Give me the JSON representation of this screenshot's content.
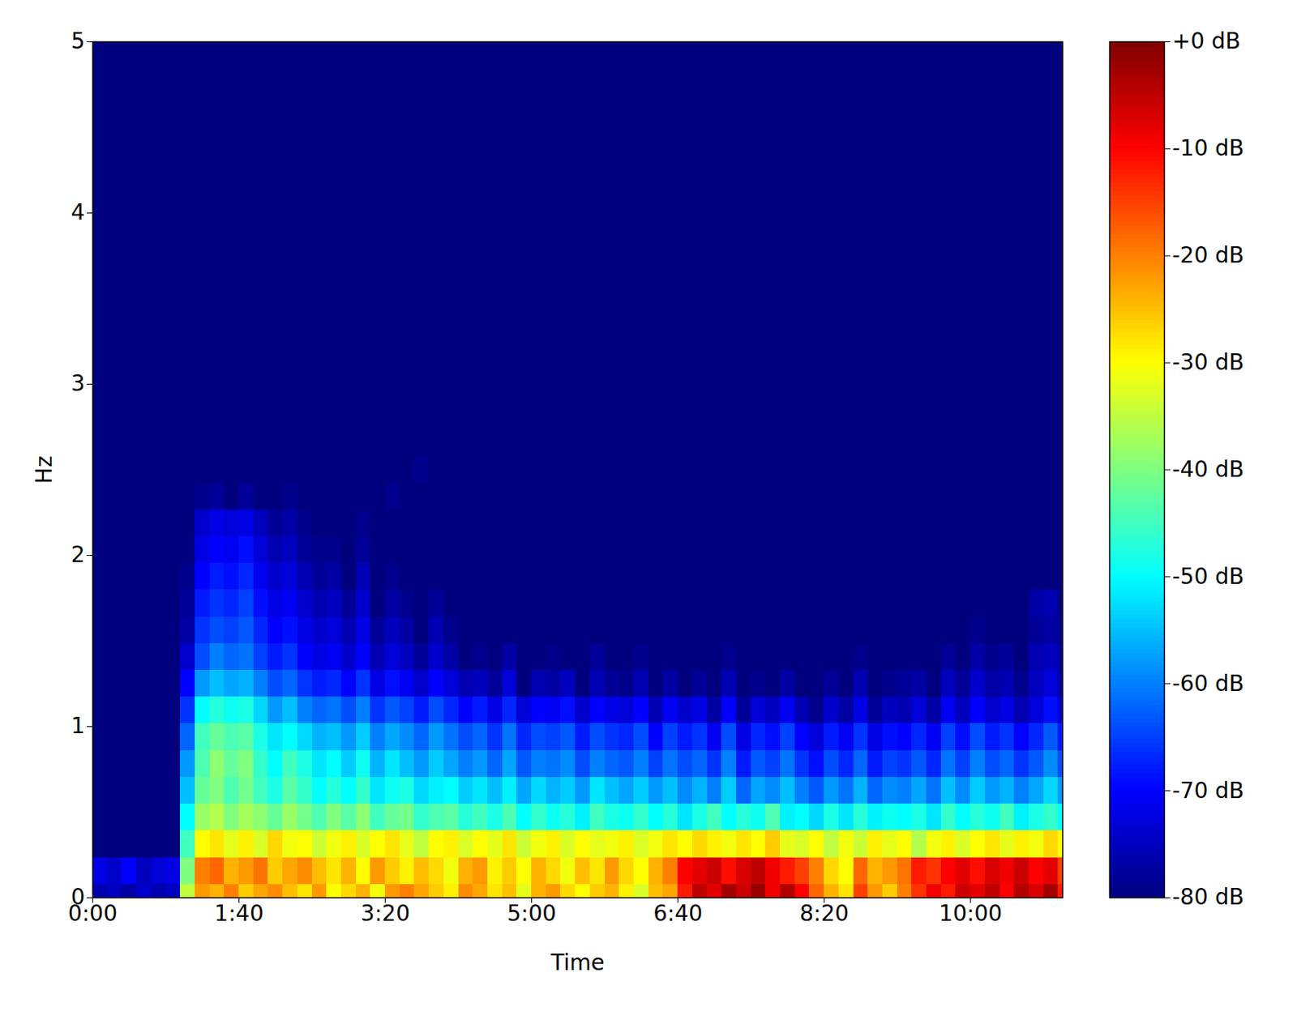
{
  "chart_data": {
    "type": "heatmap",
    "xlabel": "Time",
    "ylabel": "Hz",
    "color": "jet",
    "xlim": [
      0,
      663
    ],
    "ylim": [
      0,
      5
    ],
    "xticks": [
      {
        "value": 0,
        "label": "0:00"
      },
      {
        "value": 100,
        "label": "1:40"
      },
      {
        "value": 200,
        "label": "3:20"
      },
      {
        "value": 300,
        "label": "5:00"
      },
      {
        "value": 400,
        "label": "6:40"
      },
      {
        "value": 500,
        "label": "8:20"
      },
      {
        "value": 600,
        "label": "10:00"
      }
    ],
    "yticks": [
      0,
      1,
      2,
      3,
      4,
      5
    ],
    "x": [
      5,
      15,
      25,
      35,
      45,
      55,
      65,
      75,
      85,
      95,
      105,
      115,
      125,
      135,
      145,
      155,
      165,
      175,
      185,
      195,
      205,
      215,
      225,
      235,
      245,
      255,
      265,
      275,
      285,
      295,
      305,
      315,
      325,
      335,
      345,
      355,
      365,
      375,
      385,
      395,
      405,
      415,
      425,
      435,
      445,
      455,
      465,
      475,
      485,
      495,
      505,
      515,
      525,
      535,
      545,
      555,
      565,
      575,
      585,
      595,
      605,
      615,
      625,
      635,
      645,
      655,
      665
    ],
    "y": [
      0,
      0.156,
      0.313,
      0.469,
      0.625,
      0.781,
      0.938,
      1.094,
      1.25,
      1.406,
      1.563,
      1.719,
      1.875,
      2.031,
      2.188,
      2.344,
      2.5
    ],
    "cells": [
      [
        -76,
        -75,
        -77,
        -74,
        -76,
        -75,
        -35,
        -22,
        -24,
        -20,
        -26,
        -23,
        -21,
        -25,
        -28,
        -22,
        -30,
        -27,
        -24,
        -31,
        -22,
        -20,
        -23,
        -26,
        -29,
        -21,
        -23,
        -28,
        -25,
        -32,
        -24,
        -22,
        -27,
        -30,
        -26,
        -24,
        -29,
        -33,
        -25,
        -23,
        -12,
        -5,
        -8,
        -3,
        -6,
        -2,
        -9,
        -4,
        -10,
        -18,
        -24,
        -28,
        -15,
        -22,
        -26,
        -20,
        -14,
        -9,
        -12,
        -6,
        -8,
        -5,
        -10,
        -4,
        -7,
        -3,
        -12
      ],
      [
        -72,
        -74,
        -70,
        -75,
        -73,
        -72,
        -40,
        -20,
        -18,
        -24,
        -22,
        -19,
        -26,
        -23,
        -21,
        -25,
        -28,
        -24,
        -30,
        -22,
        -26,
        -29,
        -25,
        -27,
        -31,
        -24,
        -22,
        -29,
        -26,
        -30,
        -24,
        -27,
        -31,
        -25,
        -28,
        -22,
        -27,
        -30,
        -24,
        -20,
        -10,
        -8,
        -6,
        -11,
        -7,
        -5,
        -9,
        -12,
        -15,
        -20,
        -27,
        -30,
        -18,
        -24,
        -22,
        -19,
        -12,
        -14,
        -10,
        -8,
        -11,
        -7,
        -9,
        -6,
        -10,
        -8,
        -15
      ],
      [
        -80,
        -80,
        -80,
        -80,
        -80,
        -80,
        -45,
        -30,
        -28,
        -32,
        -29,
        -33,
        -27,
        -31,
        -30,
        -34,
        -31,
        -29,
        -33,
        -30,
        -28,
        -32,
        -35,
        -30,
        -29,
        -33,
        -30,
        -32,
        -28,
        -34,
        -31,
        -29,
        -33,
        -30,
        -32,
        -31,
        -29,
        -33,
        -31,
        -28,
        -30,
        -27,
        -29,
        -31,
        -28,
        -30,
        -26,
        -32,
        -33,
        -30,
        -35,
        -31,
        -34,
        -29,
        -32,
        -30,
        -36,
        -31,
        -29,
        -33,
        -30,
        -28,
        -32,
        -29,
        -31,
        -27,
        -30
      ],
      [
        -80,
        -80,
        -80,
        -80,
        -80,
        -80,
        -50,
        -38,
        -36,
        -40,
        -37,
        -39,
        -42,
        -38,
        -41,
        -44,
        -40,
        -43,
        -39,
        -45,
        -42,
        -41,
        -46,
        -44,
        -43,
        -47,
        -45,
        -48,
        -44,
        -50,
        -46,
        -49,
        -47,
        -51,
        -45,
        -48,
        -49,
        -46,
        -50,
        -47,
        -52,
        -48,
        -45,
        -50,
        -47,
        -49,
        -44,
        -51,
        -50,
        -53,
        -48,
        -52,
        -47,
        -51,
        -49,
        -50,
        -48,
        -52,
        -46,
        -50,
        -47,
        -49,
        -45,
        -51,
        -48,
        -46,
        -50
      ],
      [
        -80,
        -80,
        -80,
        -80,
        -80,
        -80,
        -55,
        -42,
        -40,
        -44,
        -41,
        -45,
        -48,
        -43,
        -46,
        -50,
        -47,
        -50,
        -46,
        -52,
        -49,
        -48,
        -53,
        -51,
        -50,
        -54,
        -52,
        -55,
        -51,
        -57,
        -53,
        -56,
        -54,
        -58,
        -52,
        -55,
        -57,
        -54,
        -58,
        -55,
        -59,
        -56,
        -60,
        -54,
        -62,
        -57,
        -59,
        -55,
        -60,
        -63,
        -58,
        -61,
        -56,
        -62,
        -59,
        -60,
        -57,
        -61,
        -55,
        -59,
        -54,
        -58,
        -56,
        -60,
        -57,
        -53,
        -58
      ],
      [
        -80,
        -80,
        -80,
        -80,
        -80,
        -80,
        -58,
        -44,
        -39,
        -42,
        -40,
        -46,
        -50,
        -45,
        -48,
        -52,
        -50,
        -54,
        -49,
        -56,
        -52,
        -55,
        -58,
        -54,
        -57,
        -60,
        -58,
        -62,
        -57,
        -63,
        -60,
        -61,
        -59,
        -64,
        -60,
        -62,
        -63,
        -60,
        -65,
        -61,
        -64,
        -62,
        -66,
        -60,
        -68,
        -63,
        -65,
        -61,
        -66,
        -69,
        -64,
        -67,
        -62,
        -68,
        -65,
        -66,
        -63,
        -67,
        -61,
        -65,
        -60,
        -64,
        -62,
        -66,
        -63,
        -59,
        -64
      ],
      [
        -80,
        -80,
        -80,
        -80,
        -80,
        -80,
        -62,
        -45,
        -42,
        -44,
        -43,
        -48,
        -52,
        -50,
        -53,
        -56,
        -55,
        -58,
        -54,
        -60,
        -57,
        -59,
        -62,
        -58,
        -61,
        -64,
        -62,
        -66,
        -61,
        -67,
        -64,
        -65,
        -63,
        -68,
        -64,
        -66,
        -67,
        -64,
        -70,
        -65,
        -68,
        -66,
        -71,
        -64,
        -72,
        -67,
        -69,
        -65,
        -70,
        -73,
        -68,
        -71,
        -66,
        -72,
        -69,
        -70,
        -67,
        -71,
        -65,
        -69,
        -64,
        -68,
        -66,
        -70,
        -67,
        -63,
        -68
      ],
      [
        -80,
        -80,
        -80,
        -80,
        -80,
        -80,
        -66,
        -50,
        -47,
        -49,
        -48,
        -53,
        -58,
        -55,
        -60,
        -62,
        -61,
        -64,
        -60,
        -66,
        -63,
        -65,
        -68,
        -64,
        -67,
        -70,
        -68,
        -72,
        -67,
        -73,
        -70,
        -71,
        -69,
        -74,
        -70,
        -72,
        -73,
        -70,
        -76,
        -71,
        -74,
        -72,
        -77,
        -70,
        -78,
        -73,
        -75,
        -71,
        -76,
        -79,
        -74,
        -77,
        -72,
        -78,
        -75,
        -76,
        -73,
        -77,
        -71,
        -75,
        -70,
        -74,
        -72,
        -76,
        -73,
        -69,
        -74
      ],
      [
        -80,
        -80,
        -80,
        -80,
        -80,
        -80,
        -70,
        -58,
        -55,
        -57,
        -56,
        -60,
        -64,
        -62,
        -66,
        -68,
        -67,
        -70,
        -66,
        -72,
        -69,
        -71,
        -74,
        -70,
        -73,
        -76,
        -75,
        -78,
        -73,
        -80,
        -76,
        -77,
        -75,
        -80,
        -76,
        -78,
        -79,
        -76,
        -80,
        -77,
        -80,
        -78,
        -80,
        -76,
        -80,
        -79,
        -80,
        -77,
        -80,
        -80,
        -78,
        -80,
        -76,
        -80,
        -79,
        -78,
        -77,
        -80,
        -75,
        -78,
        -74,
        -77,
        -76,
        -79,
        -75,
        -73,
        -77
      ],
      [
        -80,
        -80,
        -80,
        -80,
        -80,
        -80,
        -74,
        -64,
        -60,
        -62,
        -61,
        -65,
        -68,
        -66,
        -70,
        -72,
        -71,
        -74,
        -70,
        -76,
        -73,
        -75,
        -78,
        -74,
        -77,
        -80,
        -79,
        -80,
        -77,
        -80,
        -80,
        -79,
        -80,
        -80,
        -78,
        -80,
        -80,
        -79,
        -80,
        -80,
        -80,
        -80,
        -80,
        -79,
        -80,
        -80,
        -80,
        -80,
        -80,
        -80,
        -80,
        -80,
        -79,
        -80,
        -80,
        -80,
        -80,
        -80,
        -78,
        -80,
        -77,
        -79,
        -78,
        -80,
        -76,
        -75,
        -78
      ],
      [
        -80,
        -80,
        -80,
        -80,
        -80,
        -80,
        -77,
        -66,
        -64,
        -65,
        -63,
        -67,
        -70,
        -69,
        -72,
        -74,
        -73,
        -76,
        -72,
        -78,
        -75,
        -77,
        -80,
        -76,
        -79,
        -80,
        -80,
        -80,
        -80,
        -80,
        -80,
        -80,
        -80,
        -80,
        -80,
        -80,
        -80,
        -80,
        -80,
        -80,
        -80,
        -80,
        -80,
        -80,
        -80,
        -80,
        -80,
        -80,
        -80,
        -80,
        -80,
        -80,
        -80,
        -80,
        -80,
        -80,
        -80,
        -80,
        -80,
        -80,
        -79,
        -80,
        -80,
        -80,
        -78,
        -77,
        -79
      ],
      [
        -80,
        -80,
        -80,
        -80,
        -80,
        -80,
        -78,
        -68,
        -66,
        -67,
        -65,
        -69,
        -72,
        -71,
        -74,
        -76,
        -75,
        -78,
        -74,
        -80,
        -77,
        -79,
        -80,
        -78,
        -80,
        -80,
        -80,
        -80,
        -80,
        -80,
        -80,
        -80,
        -80,
        -80,
        -80,
        -80,
        -80,
        -80,
        -80,
        -80,
        -80,
        -80,
        -80,
        -80,
        -80,
        -80,
        -80,
        -80,
        -80,
        -80,
        -80,
        -80,
        -80,
        -80,
        -80,
        -80,
        -80,
        -80,
        -80,
        -80,
        -80,
        -80,
        -80,
        -80,
        -77,
        -76,
        -80
      ],
      [
        -80,
        -80,
        -80,
        -80,
        -80,
        -80,
        -79,
        -70,
        -68,
        -69,
        -67,
        -71,
        -74,
        -73,
        -76,
        -78,
        -77,
        -80,
        -76,
        -80,
        -79,
        -80,
        -80,
        -80,
        -80,
        -80,
        -80,
        -80,
        -80,
        -80,
        -80,
        -80,
        -80,
        -80,
        -80,
        -80,
        -80,
        -80,
        -80,
        -80,
        -80,
        -80,
        -80,
        -80,
        -80,
        -80,
        -80,
        -80,
        -80,
        -80,
        -80,
        -80,
        -80,
        -80,
        -80,
        -80,
        -80,
        -80,
        -80,
        -80,
        -80,
        -80,
        -80,
        -80,
        -80,
        -80,
        -80
      ],
      [
        -80,
        -80,
        -80,
        -80,
        -80,
        -80,
        -80,
        -72,
        -70,
        -71,
        -69,
        -73,
        -76,
        -75,
        -78,
        -79,
        -79,
        -80,
        -78,
        -80,
        -80,
        -80,
        -80,
        -80,
        -80,
        -80,
        -80,
        -80,
        -80,
        -80,
        -80,
        -80,
        -80,
        -80,
        -80,
        -80,
        -80,
        -80,
        -80,
        -80,
        -80,
        -80,
        -80,
        -80,
        -80,
        -80,
        -80,
        -80,
        -80,
        -80,
        -80,
        -80,
        -80,
        -80,
        -80,
        -80,
        -80,
        -80,
        -80,
        -80,
        -80,
        -80,
        -80,
        -80,
        -80,
        -80,
        -80
      ],
      [
        -80,
        -80,
        -80,
        -80,
        -80,
        -80,
        -80,
        -74,
        -72,
        -73,
        -72,
        -75,
        -78,
        -77,
        -79,
        -80,
        -80,
        -80,
        -79,
        -80,
        -80,
        -80,
        -80,
        -80,
        -80,
        -80,
        -80,
        -80,
        -80,
        -80,
        -80,
        -80,
        -80,
        -80,
        -80,
        -80,
        -80,
        -80,
        -80,
        -80,
        -80,
        -80,
        -80,
        -80,
        -80,
        -80,
        -80,
        -80,
        -80,
        -80,
        -80,
        -80,
        -80,
        -80,
        -80,
        -80,
        -80,
        -80,
        -80,
        -80,
        -80,
        -80,
        -80,
        -80,
        -80,
        -80,
        -80
      ],
      [
        -80,
        -80,
        -80,
        -80,
        -80,
        -80,
        -80,
        -79,
        -78,
        -80,
        -78,
        -80,
        -80,
        -79,
        -80,
        -80,
        -80,
        -80,
        -80,
        -80,
        -79,
        -80,
        -80,
        -80,
        -80,
        -80,
        -80,
        -80,
        -80,
        -80,
        -80,
        -80,
        -80,
        -80,
        -80,
        -80,
        -80,
        -80,
        -80,
        -80,
        -80,
        -80,
        -80,
        -80,
        -80,
        -80,
        -80,
        -80,
        -80,
        -80,
        -80,
        -80,
        -80,
        -80,
        -80,
        -80,
        -80,
        -80,
        -80,
        -80,
        -80,
        -80,
        -80,
        -80,
        -80,
        -80,
        -80
      ],
      [
        -80,
        -80,
        -80,
        -80,
        -80,
        -80,
        -80,
        -80,
        -80,
        -80,
        -80,
        -80,
        -80,
        -80,
        -80,
        -80,
        -80,
        -80,
        -80,
        -80,
        -80,
        -80,
        -79,
        -80,
        -80,
        -80,
        -80,
        -80,
        -80,
        -80,
        -80,
        -80,
        -80,
        -80,
        -80,
        -80,
        -80,
        -80,
        -80,
        -80,
        -80,
        -80,
        -80,
        -80,
        -80,
        -80,
        -80,
        -80,
        -80,
        -80,
        -80,
        -80,
        -80,
        -80,
        -80,
        -80,
        -80,
        -80,
        -80,
        -80,
        -80,
        -80,
        -80,
        -80,
        -80,
        -80,
        -80
      ]
    ],
    "colorbar": {
      "range": [
        -80,
        0
      ],
      "ticks": [
        {
          "value": 0,
          "label": "+0 dB"
        },
        {
          "value": -10,
          "label": "-10 dB"
        },
        {
          "value": -20,
          "label": "-20 dB"
        },
        {
          "value": -30,
          "label": "-30 dB"
        },
        {
          "value": -40,
          "label": "-40 dB"
        },
        {
          "value": -50,
          "label": "-50 dB"
        },
        {
          "value": -60,
          "label": "-60 dB"
        },
        {
          "value": -70,
          "label": "-70 dB"
        },
        {
          "value": -80,
          "label": "-80 dB"
        }
      ]
    }
  }
}
